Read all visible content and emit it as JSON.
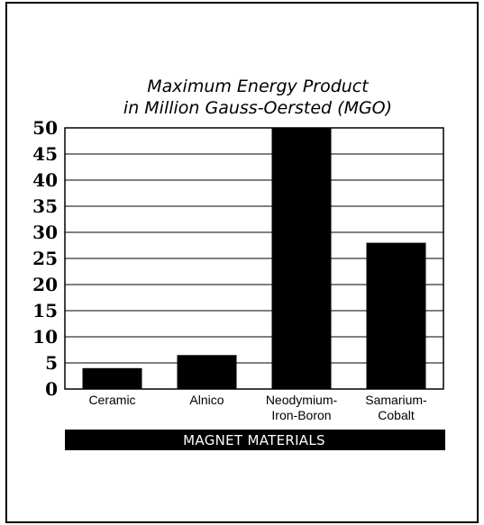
{
  "chart_data": {
    "type": "bar",
    "title": [
      "Maximum Energy Product",
      "in Million Gauss-Oersted (MGO)"
    ],
    "categories": [
      [
        "Ceramic"
      ],
      [
        "Alnico"
      ],
      [
        "Neodymium-",
        "Iron-Boron"
      ],
      [
        "Samarium-",
        "Cobalt"
      ]
    ],
    "values": [
      4,
      6.5,
      50,
      28
    ],
    "ylim": [
      0,
      50
    ],
    "yticks": [
      0,
      5,
      10,
      15,
      20,
      25,
      30,
      35,
      40,
      45,
      50
    ],
    "grid": true,
    "xlabel": "MAGNET MATERIALS",
    "bar_color": "#000000"
  }
}
